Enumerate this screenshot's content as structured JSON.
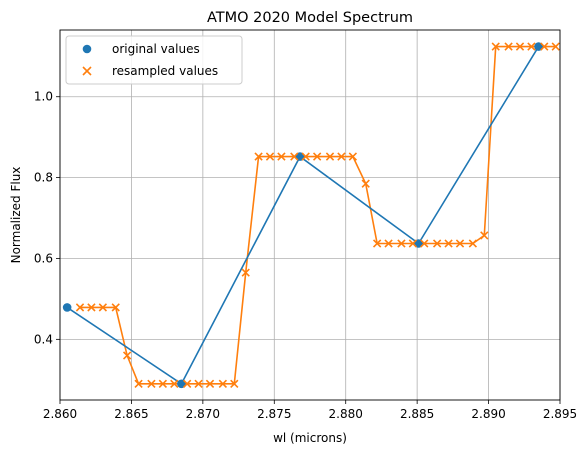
{
  "chart_data": {
    "type": "line",
    "title": "ATMO 2020 Model Spectrum",
    "xlabel": "wl (microns)",
    "ylabel": "Normalized Flux",
    "xlim": [
      2.86,
      2.895
    ],
    "ylim": [
      0.25,
      1.165
    ],
    "grid": true,
    "legend_position": "top-left",
    "x_ticks": [
      2.86,
      2.865,
      2.87,
      2.875,
      2.88,
      2.885,
      2.89,
      2.895
    ],
    "x_tick_labels": [
      "2.860",
      "2.865",
      "2.870",
      "2.875",
      "2.880",
      "2.885",
      "2.890",
      "2.895"
    ],
    "y_ticks": [
      0.4,
      0.6,
      0.8,
      1.0
    ],
    "y_tick_labels": [
      "0.4",
      "0.6",
      "0.8",
      "1.0"
    ],
    "series": [
      {
        "name": "original values",
        "marker": "circle",
        "color": "#1f77b4",
        "x": [
          2.8605,
          2.8685,
          2.8768,
          2.8851,
          2.8935
        ],
        "y": [
          0.479,
          0.29,
          0.852,
          0.637,
          1.124
        ]
      },
      {
        "name": "resampled values",
        "marker": "x",
        "color": "#ff7f0e",
        "x": [
          2.8614,
          2.8622,
          2.863,
          2.8639,
          2.8647,
          2.8655,
          2.8664,
          2.8672,
          2.868,
          2.8689,
          2.8697,
          2.8705,
          2.8714,
          2.8722,
          2.873,
          2.8739,
          2.8747,
          2.8755,
          2.8764,
          2.8772,
          2.878,
          2.8789,
          2.8797,
          2.8805,
          2.8814,
          2.8822,
          2.883,
          2.8839,
          2.8847,
          2.8855,
          2.8864,
          2.8872,
          2.888,
          2.8889,
          2.8897,
          2.8905,
          2.8914,
          2.8922,
          2.893,
          2.8939,
          2.8947
        ],
        "y": [
          0.479,
          0.479,
          0.479,
          0.479,
          0.36,
          0.29,
          0.29,
          0.29,
          0.29,
          0.29,
          0.29,
          0.29,
          0.29,
          0.29,
          0.565,
          0.852,
          0.852,
          0.852,
          0.852,
          0.852,
          0.852,
          0.852,
          0.852,
          0.852,
          0.785,
          0.637,
          0.637,
          0.637,
          0.637,
          0.637,
          0.637,
          0.637,
          0.637,
          0.637,
          0.657,
          1.124,
          1.124,
          1.124,
          1.124,
          1.124,
          1.124
        ]
      }
    ]
  }
}
